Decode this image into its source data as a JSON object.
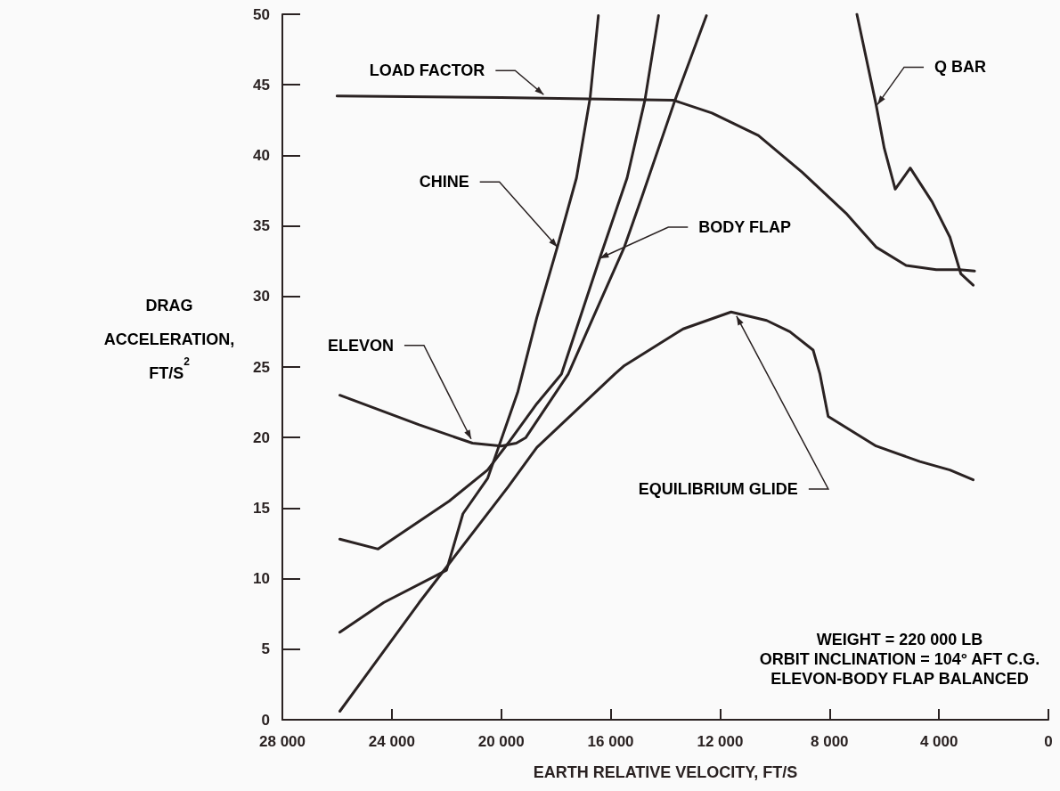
{
  "chart_data": {
    "type": "line",
    "xlabel": "EARTH RELATIVE VELOCITY, FT/S",
    "ylabel": "DRAG ACCELERATION, FT/S$^{2}$",
    "xlim": [
      28000,
      0
    ],
    "xticks": [
      {
        "value": 28000,
        "label": "28 000"
      },
      {
        "value": 24000,
        "label": "24 000"
      },
      {
        "value": 20000,
        "label": "20 000"
      },
      {
        "value": 16000,
        "label": "16 000"
      },
      {
        "value": 12000,
        "label": "12 000"
      },
      {
        "value": 8000,
        "label": "8 000"
      },
      {
        "value": 4000,
        "label": "4 000"
      },
      0
    ],
    "ylim": [
      0,
      50
    ],
    "yticks": [
      0,
      5,
      10,
      15,
      20,
      25,
      30,
      35,
      40,
      45,
      50
    ],
    "grid": false,
    "series": [
      {
        "color": "#2a2222",
        "x": [
          26000,
          20000,
          13700,
          12300,
          10600,
          9000,
          7400,
          6300,
          5200,
          4100,
          3250,
          2700
        ],
        "values": [
          44.2,
          44.1,
          43.9,
          43.0,
          41.4,
          38.8,
          35.9,
          33.5,
          32.2,
          31.9,
          31.9,
          31.8
        ]
      },
      {
        "color": "#2a2222",
        "x": [
          7000,
          6300,
          6000,
          5600,
          5050,
          4250,
          3600,
          3200,
          2750
        ],
        "values": [
          50.0,
          43.6,
          40.5,
          37.6,
          39.1,
          36.7,
          34.2,
          31.6,
          30.8
        ]
      },
      {
        "color": "#2a2222",
        "x": [
          25900,
          24300,
          22000,
          21400,
          20500,
          20100,
          19400,
          18700,
          17950,
          17250,
          16750,
          16450
        ],
        "values": [
          6.2,
          8.3,
          10.6,
          14.6,
          17.1,
          19.3,
          23.2,
          28.5,
          33.5,
          38.4,
          44.1,
          49.9
        ]
      },
      {
        "color": "#2a2222",
        "x": [
          25900,
          24500,
          21900,
          20500,
          19750,
          18700,
          17800,
          16400,
          15400,
          14750,
          14250
        ],
        "values": [
          12.8,
          12.1,
          15.5,
          17.7,
          19.6,
          22.4,
          24.5,
          32.7,
          38.4,
          43.9,
          49.9
        ]
      },
      {
        "color": "#2a2222",
        "x": [
          25900,
          23000,
          21050,
          20000,
          19450,
          19100,
          17550,
          16550,
          15500,
          14850,
          13650,
          12500
        ],
        "values": [
          23.0,
          20.9,
          19.6,
          19.4,
          19.6,
          20.0,
          24.5,
          28.9,
          33.5,
          37.1,
          43.9,
          49.9
        ]
      },
      {
        "color": "#2a2222",
        "x": [
          25900,
          23000,
          19750,
          18700,
          15850,
          15500,
          13350,
          11600,
          10300,
          9450,
          8600,
          8350,
          8050,
          6300,
          4700,
          3600,
          2750
        ],
        "values": [
          0.6,
          8.3,
          16.5,
          19.3,
          24.5,
          25.1,
          27.7,
          28.9,
          28.3,
          27.5,
          26.2,
          24.5,
          21.5,
          19.4,
          18.3,
          17.7,
          17.0
        ]
      }
    ],
    "annotations": [
      {
        "text": "LOAD FACTOR",
        "x": 18450,
        "y": 44.3
      },
      {
        "text": "CHINE",
        "x": 17950,
        "y": 33.5
      },
      {
        "text": "BODY FLAP",
        "x": 16400,
        "y": 32.7
      },
      {
        "text": "ELEVON",
        "x": 21100,
        "y": 19.9
      },
      {
        "text": "EQUILIBRIUM GLIDE",
        "x": 11400,
        "y": 28.6
      },
      {
        "text": "Q BAR",
        "x": 6250,
        "y": 43.6
      },
      "WEIGHT = 220 000 LB",
      "ORBIT INCLINATION = 104° AFT C.G.",
      "ELEVON-BODY FLAP BALANCED"
    ]
  }
}
